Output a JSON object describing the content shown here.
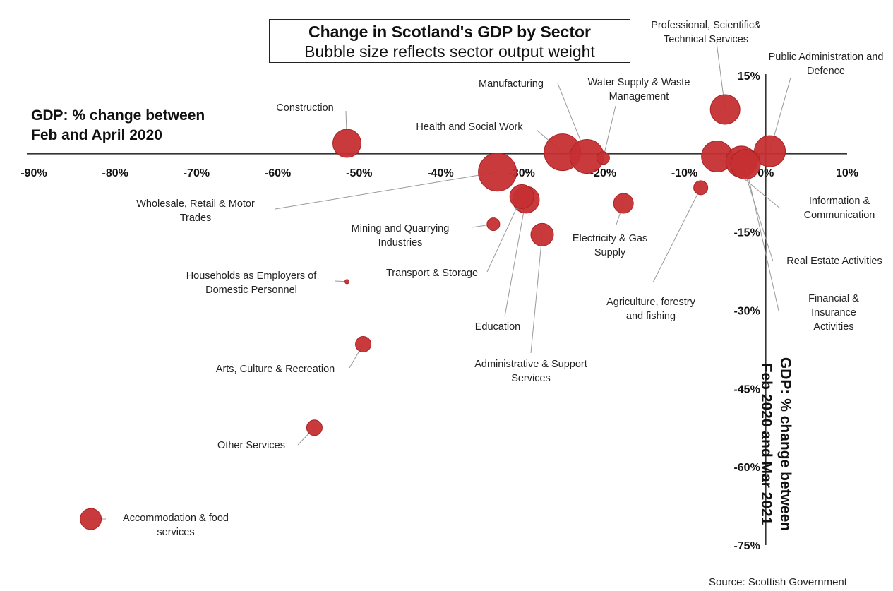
{
  "title": "Change in Scotland's GDP by Sector",
  "subtitle": "Bubble size reflects sector output weight",
  "source": "Source: Scottish Government",
  "colors": {
    "bubble": "#c62f32",
    "bubble_edge": "#a82226",
    "axis": "#333333",
    "leader": "#999999"
  },
  "chart_data": {
    "type": "scatter",
    "xlabel": "GDP: % change between\nFeb and April 2020",
    "ylabel": "GDP: % change between\nFeb 2020 and Mar 2021",
    "xlim": [
      -90,
      10
    ],
    "ylim": [
      -75,
      15
    ],
    "x_ticks": [
      "-90%",
      "-80%",
      "-70%",
      "-60%",
      "-50%",
      "-40%",
      "-30%",
      "-20%",
      "-10%",
      "0%",
      "10%"
    ],
    "y_ticks": [
      "15%",
      "0%",
      "-15%",
      "-30%",
      "-45%",
      "-60%",
      "-75%"
    ],
    "grid": false,
    "points": [
      {
        "label": [
          "Construction"
        ],
        "x": -51.5,
        "y": 2.0,
        "size": 20
      },
      {
        "label": [
          "Health and Social Work"
        ],
        "x": -25,
        "y": 0.3,
        "size": 26
      },
      {
        "label": [
          "Manufacturing"
        ],
        "x": -22,
        "y": -0.5,
        "size": 24
      },
      {
        "label": [
          "Water Supply & Waste",
          "Management"
        ],
        "x": -20,
        "y": -0.8,
        "size": 9
      },
      {
        "label": [
          "Professional, Scientific&",
          "Technical Services"
        ],
        "x": -5,
        "y": 8.5,
        "size": 21
      },
      {
        "label": [
          "Public Administration and",
          "Defence"
        ],
        "x": 0.5,
        "y": 0.5,
        "size": 22
      },
      {
        "label": [
          "Wholesale, Retail & Motor",
          "Trades"
        ],
        "x": -33,
        "y": -3.5,
        "size": 27
      },
      {
        "label": [
          "Transport & Storage"
        ],
        "x": -30,
        "y": -8.2,
        "size": 17
      },
      {
        "label": [
          "Education"
        ],
        "x": -29.5,
        "y": -8.8,
        "size": 19
      },
      {
        "label": [
          "Mining and Quarrying",
          "Industries"
        ],
        "x": -33.5,
        "y": -13.5,
        "size": 9
      },
      {
        "label": [
          "Administrative & Support",
          "Services"
        ],
        "x": -27.5,
        "y": -15.5,
        "size": 16
      },
      {
        "label": [
          "Electricity & Gas",
          "Supply"
        ],
        "x": -17.5,
        "y": -9.5,
        "size": 14
      },
      {
        "label": [
          "Agriculture, forestry",
          "and fishing"
        ],
        "x": -8,
        "y": -6.5,
        "size": 10
      },
      {
        "label": [
          "Information &",
          "Communication"
        ],
        "x": -6,
        "y": -0.5,
        "size": 22
      },
      {
        "label": [
          "Real Estate Activities"
        ],
        "x": -3,
        "y": -1.5,
        "size": 22
      },
      {
        "label": [
          "Financial &",
          "Insurance",
          "Activities"
        ],
        "x": -2.5,
        "y": -2.0,
        "size": 21
      },
      {
        "label": [
          "Households as Employers of",
          "Domestic Personnel"
        ],
        "x": -51.5,
        "y": -24.5,
        "size": 3
      },
      {
        "label": [
          "Arts, Culture & Recreation"
        ],
        "x": -49.5,
        "y": -36.5,
        "size": 11
      },
      {
        "label": [
          "Other Services"
        ],
        "x": -55.5,
        "y": -52.5,
        "size": 11
      },
      {
        "label": [
          "Accommodation & food",
          "services"
        ],
        "x": -83,
        "y": -70,
        "size": 15
      }
    ]
  }
}
